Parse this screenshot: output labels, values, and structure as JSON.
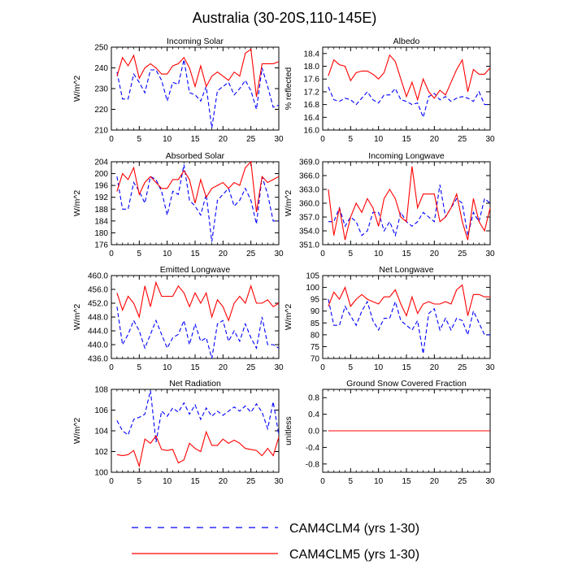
{
  "title": "Australia (30-20S,110-145E)",
  "legend": [
    {
      "label": "CAM4CLM4 (yrs 1-30)",
      "color": "#0000ff",
      "dash": "dashed"
    },
    {
      "label": "CAM4CLM5 (yrs 1-30)",
      "color": "#ff0000",
      "dash": "solid"
    }
  ],
  "chart_data": [
    {
      "type": "line",
      "title": "Incoming Solar",
      "ylabel": "W/m^2",
      "xlim": [
        0,
        30
      ],
      "ylim": [
        210,
        250
      ],
      "xticks": [
        0,
        5,
        10,
        15,
        20,
        25,
        30
      ],
      "yticks": [
        210,
        220,
        230,
        240,
        250
      ],
      "ytick_labels": [
        "210",
        "220",
        "230",
        "240",
        "250"
      ],
      "x": [
        1,
        2,
        3,
        4,
        5,
        6,
        7,
        8,
        9,
        10,
        11,
        12,
        13,
        14,
        15,
        16,
        17,
        18,
        19,
        20,
        21,
        22,
        23,
        24,
        25,
        26,
        27,
        28,
        29,
        30
      ],
      "series": [
        {
          "name": "CAM4CLM4",
          "color": "#0000ff",
          "dash": true,
          "values": [
            238,
            225,
            225,
            237,
            233,
            228,
            239,
            239,
            234,
            224,
            233,
            232,
            244,
            228,
            227,
            224,
            231,
            211,
            229,
            231,
            233,
            227,
            230,
            234,
            229,
            220,
            240,
            231,
            221,
            222
          ]
        },
        {
          "name": "CAM4CLM5",
          "color": "#ff0000",
          "dash": false,
          "values": [
            236,
            245,
            241,
            246,
            235,
            240,
            242,
            240,
            237,
            237,
            241,
            242,
            245,
            240,
            231,
            241,
            231,
            236,
            238,
            236,
            234,
            238,
            236,
            247,
            249,
            226,
            242,
            242,
            242,
            243
          ]
        }
      ]
    },
    {
      "type": "line",
      "title": "Albedo",
      "ylabel": "% reflected",
      "xlim": [
        0,
        30
      ],
      "ylim": [
        16.0,
        18.6
      ],
      "xticks": [
        0,
        5,
        10,
        15,
        20,
        25,
        30
      ],
      "yticks": [
        16.0,
        16.4,
        16.8,
        17.2,
        17.6,
        18.0,
        18.4
      ],
      "ytick_labels": [
        "16.0",
        "16.4",
        "16.8",
        "17.2",
        "17.6",
        "18.0",
        "18.4"
      ],
      "x": [
        1,
        2,
        3,
        4,
        5,
        6,
        7,
        8,
        9,
        10,
        11,
        12,
        13,
        14,
        15,
        16,
        17,
        18,
        19,
        20,
        21,
        22,
        23,
        24,
        25,
        26,
        27,
        28,
        29,
        30
      ],
      "series": [
        {
          "name": "CAM4CLM4",
          "color": "#0000ff",
          "dash": true,
          "values": [
            17.35,
            16.95,
            16.9,
            17.0,
            16.95,
            16.8,
            17.0,
            17.2,
            16.95,
            16.85,
            17.1,
            17.1,
            17.3,
            16.95,
            16.9,
            16.8,
            16.85,
            16.4,
            17.05,
            17.15,
            16.95,
            17.05,
            16.9,
            17.0,
            17.05,
            17.0,
            16.9,
            17.2,
            16.8,
            16.8
          ]
        },
        {
          "name": "CAM4CLM5",
          "color": "#ff0000",
          "dash": false,
          "values": [
            17.7,
            18.2,
            18.05,
            18.0,
            17.55,
            17.8,
            17.85,
            17.85,
            17.75,
            17.6,
            17.8,
            18.35,
            18.15,
            17.6,
            17.05,
            17.5,
            16.95,
            17.6,
            17.2,
            17.0,
            17.25,
            17.1,
            17.5,
            17.9,
            18.2,
            17.2,
            17.9,
            17.75,
            17.75,
            17.95
          ]
        }
      ]
    },
    {
      "type": "line",
      "title": "Absorbed Solar",
      "ylabel": "W/m^2",
      "xlim": [
        0,
        30
      ],
      "ylim": [
        176,
        204
      ],
      "xticks": [
        0,
        5,
        10,
        15,
        20,
        25,
        30
      ],
      "yticks": [
        176,
        180,
        184,
        188,
        192,
        196,
        200,
        204
      ],
      "ytick_labels": [
        "176",
        "180",
        "184",
        "188",
        "192",
        "196",
        "200",
        "204"
      ],
      "x": [
        1,
        2,
        3,
        4,
        5,
        6,
        7,
        8,
        9,
        10,
        11,
        12,
        13,
        14,
        15,
        16,
        17,
        18,
        19,
        20,
        21,
        22,
        23,
        24,
        25,
        26,
        27,
        28,
        29,
        30
      ],
      "series": [
        {
          "name": "CAM4CLM4",
          "color": "#0000ff",
          "dash": true,
          "values": [
            199,
            188,
            188,
            197,
            194,
            190,
            199,
            198,
            194,
            186,
            194,
            193,
            203,
            191,
            189,
            186,
            193,
            177,
            191,
            193,
            195,
            189,
            191,
            195,
            191,
            183,
            199,
            193,
            184,
            184
          ]
        },
        {
          "name": "CAM4CLM5",
          "color": "#ff0000",
          "dash": false,
          "values": [
            194,
            200,
            198,
            202,
            193,
            197,
            199,
            197,
            195,
            195,
            198,
            198,
            201,
            198,
            190,
            198,
            192,
            195,
            196,
            197,
            195,
            197,
            196,
            202,
            204,
            187,
            199,
            197,
            198,
            199
          ]
        }
      ]
    },
    {
      "type": "line",
      "title": "Incoming Longwave",
      "ylabel": "W/m^2",
      "xlim": [
        0,
        30
      ],
      "ylim": [
        351,
        369
      ],
      "xticks": [
        0,
        5,
        10,
        15,
        20,
        25,
        30
      ],
      "yticks": [
        351,
        354,
        357,
        360,
        363,
        366,
        369
      ],
      "ytick_labels": [
        "351.0",
        "354.0",
        "357.0",
        "360.0",
        "363.0",
        "366.0",
        "369.0"
      ],
      "x": [
        1,
        2,
        3,
        4,
        5,
        6,
        7,
        8,
        9,
        10,
        11,
        12,
        13,
        14,
        15,
        16,
        17,
        18,
        19,
        20,
        21,
        22,
        23,
        24,
        25,
        26,
        27,
        28,
        29,
        30
      ],
      "series": [
        {
          "name": "CAM4CLM4",
          "color": "#0000ff",
          "dash": true,
          "values": [
            356,
            356,
            359,
            355,
            357,
            356,
            353,
            354,
            358,
            358,
            354,
            356,
            353,
            358,
            356,
            355,
            356,
            358,
            357,
            356,
            364,
            357,
            359,
            361,
            360,
            353,
            358,
            356,
            361,
            360
          ]
        },
        {
          "name": "CAM4CLM5",
          "color": "#ff0000",
          "dash": false,
          "values": [
            363,
            353,
            359,
            352,
            357,
            360,
            358,
            361,
            359,
            355,
            361,
            363,
            361,
            357,
            356,
            368,
            359,
            362,
            362,
            362,
            356,
            357,
            359,
            362,
            356,
            352,
            361,
            356,
            354,
            359
          ]
        }
      ]
    },
    {
      "type": "line",
      "title": "Emitted Longwave",
      "ylabel": "W/m^2",
      "xlim": [
        0,
        30
      ],
      "ylim": [
        436,
        460
      ],
      "xticks": [
        0,
        5,
        10,
        15,
        20,
        25,
        30
      ],
      "yticks": [
        436,
        440,
        444,
        448,
        452,
        456,
        460
      ],
      "ytick_labels": [
        "436.0",
        "440.0",
        "444.0",
        "448.0",
        "452.0",
        "456.0",
        "460.0"
      ],
      "x": [
        1,
        2,
        3,
        4,
        5,
        6,
        7,
        8,
        9,
        10,
        11,
        12,
        13,
        14,
        15,
        16,
        17,
        18,
        19,
        20,
        21,
        22,
        23,
        24,
        25,
        26,
        27,
        28,
        29,
        30
      ],
      "series": [
        {
          "name": "CAM4CLM4",
          "color": "#0000ff",
          "dash": true,
          "values": [
            451,
            440,
            443,
            447,
            444,
            439,
            443,
            447,
            443,
            439,
            442,
            443,
            447,
            440,
            446,
            441,
            442,
            436,
            446,
            447,
            441,
            444,
            441,
            446,
            442,
            439,
            448,
            440,
            440,
            439
          ]
        },
        {
          "name": "CAM4CLM5",
          "color": "#ff0000",
          "dash": false,
          "values": [
            455,
            450,
            454,
            452,
            448,
            457,
            451,
            458,
            454,
            454,
            454,
            457,
            455,
            451,
            455,
            452,
            455,
            448,
            453,
            451,
            447,
            452,
            454,
            452,
            457,
            452,
            452,
            453,
            451,
            452
          ]
        }
      ]
    },
    {
      "type": "line",
      "title": "Net Longwave",
      "ylabel": "W/m^2",
      "xlim": [
        0,
        30
      ],
      "ylim": [
        70,
        105
      ],
      "xticks": [
        0,
        5,
        10,
        15,
        20,
        25,
        30
      ],
      "yticks": [
        70,
        75,
        80,
        85,
        90,
        95,
        100,
        105
      ],
      "ytick_labels": [
        "70",
        "75",
        "80",
        "85",
        "90",
        "95",
        "100",
        "105"
      ],
      "x": [
        1,
        2,
        3,
        4,
        5,
        6,
        7,
        8,
        9,
        10,
        11,
        12,
        13,
        14,
        15,
        16,
        17,
        18,
        19,
        20,
        21,
        22,
        23,
        24,
        25,
        26,
        27,
        28,
        29,
        30
      ],
      "series": [
        {
          "name": "CAM4CLM4",
          "color": "#0000ff",
          "dash": true,
          "values": [
            95,
            84,
            84,
            92,
            88,
            84,
            90,
            94,
            86,
            82,
            87,
            87,
            94,
            86,
            84,
            82,
            86,
            72,
            89,
            91,
            82,
            87,
            82,
            87,
            86,
            80,
            90,
            85,
            80,
            80
          ]
        },
        {
          "name": "CAM4CLM5",
          "color": "#ff0000",
          "dash": false,
          "values": [
            92,
            98,
            95,
            100,
            92,
            95,
            97,
            95,
            94,
            93,
            96,
            96,
            99,
            93,
            88,
            96,
            89,
            93,
            94,
            93,
            93,
            94,
            93,
            99,
            101,
            88,
            97,
            97,
            96,
            96
          ]
        }
      ]
    },
    {
      "type": "line",
      "title": "Net Radiation",
      "ylabel": "W/m^2",
      "xlim": [
        0,
        30
      ],
      "ylim": [
        100,
        108
      ],
      "xticks": [
        0,
        5,
        10,
        15,
        20,
        25,
        30
      ],
      "yticks": [
        100,
        102,
        104,
        106,
        108
      ],
      "ytick_labels": [
        "100",
        "102",
        "104",
        "106",
        "108"
      ],
      "x": [
        1,
        2,
        3,
        4,
        5,
        6,
        7,
        8,
        9,
        10,
        11,
        12,
        13,
        14,
        15,
        16,
        17,
        18,
        19,
        20,
        21,
        22,
        23,
        24,
        25,
        26,
        27,
        28,
        29,
        30
      ],
      "series": [
        {
          "name": "CAM4CLM4",
          "color": "#0000ff",
          "dash": true,
          "values": [
            105,
            104,
            103.6,
            105.1,
            105.3,
            105.6,
            107.9,
            102.9,
            105.9,
            105.4,
            106.2,
            105.8,
            106.7,
            105.6,
            106.5,
            105.1,
            106.2,
            105.4,
            105.9,
            105.5,
            105.9,
            106.3,
            105.9,
            106.4,
            105.8,
            106.6,
            105.8,
            104.2,
            106.8,
            103.6
          ]
        },
        {
          "name": "CAM4CLM5",
          "color": "#ff0000",
          "dash": false,
          "values": [
            101.7,
            101.6,
            101.7,
            102.1,
            100.6,
            103.2,
            102.8,
            103.5,
            102.2,
            102.1,
            102.2,
            100.9,
            101.2,
            102.8,
            102.3,
            102,
            103.9,
            102.6,
            102.6,
            103.2,
            102.8,
            103.1,
            102.8,
            102.3,
            102.2,
            102.1,
            101.6,
            102.3,
            101.6,
            103.4
          ]
        }
      ]
    },
    {
      "type": "line",
      "title": "Ground Snow Covered Fraction",
      "ylabel": "unitless",
      "xlim": [
        0,
        30
      ],
      "ylim": [
        -1,
        1
      ],
      "xticks": [
        0,
        5,
        10,
        15,
        20,
        25,
        30
      ],
      "yticks": [
        -0.8,
        -0.4,
        0.0,
        0.4,
        0.8
      ],
      "ytick_labels": [
        "-0.8",
        "-0.4",
        "0.0",
        "0.4",
        "0.8"
      ],
      "x": [
        1,
        30
      ],
      "series": [
        {
          "name": "CAM4CLM4",
          "color": "#0000ff",
          "dash": true,
          "values": [
            0,
            0
          ]
        },
        {
          "name": "CAM4CLM5",
          "color": "#ff0000",
          "dash": false,
          "values": [
            0,
            0
          ]
        }
      ]
    }
  ]
}
